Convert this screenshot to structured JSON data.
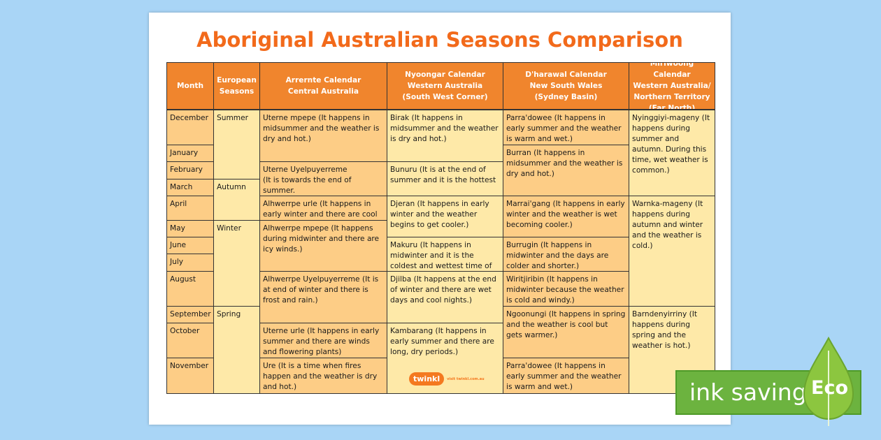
{
  "title": "Aboriginal Australian Seasons Comparison",
  "headers": [
    "Month",
    "European\nSeasons",
    "Arrernte Calendar\nCentral Australia",
    "Nyoongar Calendar\nWestern Australia\n(South West Corner)",
    "D'harawal Calendar\nNew South Wales\n(Sydney Basin)",
    "Miriwoong Calendar\nWestern Australia/\nNorthern Territory\n(Far North)"
  ],
  "months": [
    "December",
    "January",
    "February",
    "March",
    "April",
    "May",
    "June",
    "July",
    "August",
    "September",
    "October",
    "November"
  ],
  "european": [
    "Summer",
    "Autumn",
    "Winter",
    "Spring"
  ],
  "arrernte": [
    "Uterne mpepe (It happens in midsummer and the weather is dry and hot.)",
    "Uterne Uyelpuyerreme\n(It is towards the end of summer.",
    "Alhwerrpe urle (It happens in early winter and there are cool nights.)",
    "Alhwerrpe mpepe (It happens during midwinter and there are icy winds.)",
    "Alhwerrpe Uyelpuyerreme (It is at end of winter and there is frost and rain.)",
    "Uterne urle (It happens in early summer and there are winds and flowering plants)",
    "Ure (It is a time when fires happen and the weather is dry and hot.)"
  ],
  "nyoongar": [
    "Birak (It happens in midsummer and the weather is dry and hot.)",
    "Bunuru (It is at the end of summer and it is the hottest",
    "Djeran (It happens in early winter and the weather begins to get cooler.)",
    "Makuru (It happens in midwinter and it is the coldest and wettest time of the year.)",
    "Djilba (It happens at the end of winter and there are wet days and cool nights.)",
    "Kambarang (It happens in early summer and there are long, dry periods.)"
  ],
  "dharawal": [
    "Parra'dowee (It happens in early summer and the weather is warm and wet.)",
    "Burran (It happens in midsummer and the weather is dry and hot.)",
    "Marrai'gang (It happens in early winter and the weather is wet becoming cooler.)",
    "Burrugin (It happens in midwinter and the days are colder and shorter.)",
    "Wiritjiribin (It happens in midwinter because the weather is cold and windy.)",
    "Ngoonungi (It happens in spring and the weather is cool but gets warmer.)",
    "Parra'dowee (It happens in early summer and the weather is warm and wet.)"
  ],
  "miriwoong": [
    "Nyinggiyi-mageny (It happens during summer and autumn. During this time, wet weather is common.)",
    "Warnka-mageny (It happens during autumn and winter and the weather is cold.)",
    "Barndenyirriny (It happens during spring and the weather is hot.)"
  ],
  "branding": {
    "logo": "twinkl",
    "url": "visit twinkl.com.au"
  },
  "badge": {
    "text": "ink saving",
    "eco": "Eco"
  },
  "colors": {
    "header": "#f0852d",
    "title": "#f26a1b",
    "cell_dark": "#fdcd86",
    "cell_light": "#fee9a8",
    "badge": "#6cb33f",
    "background": "#a9d5f6"
  }
}
